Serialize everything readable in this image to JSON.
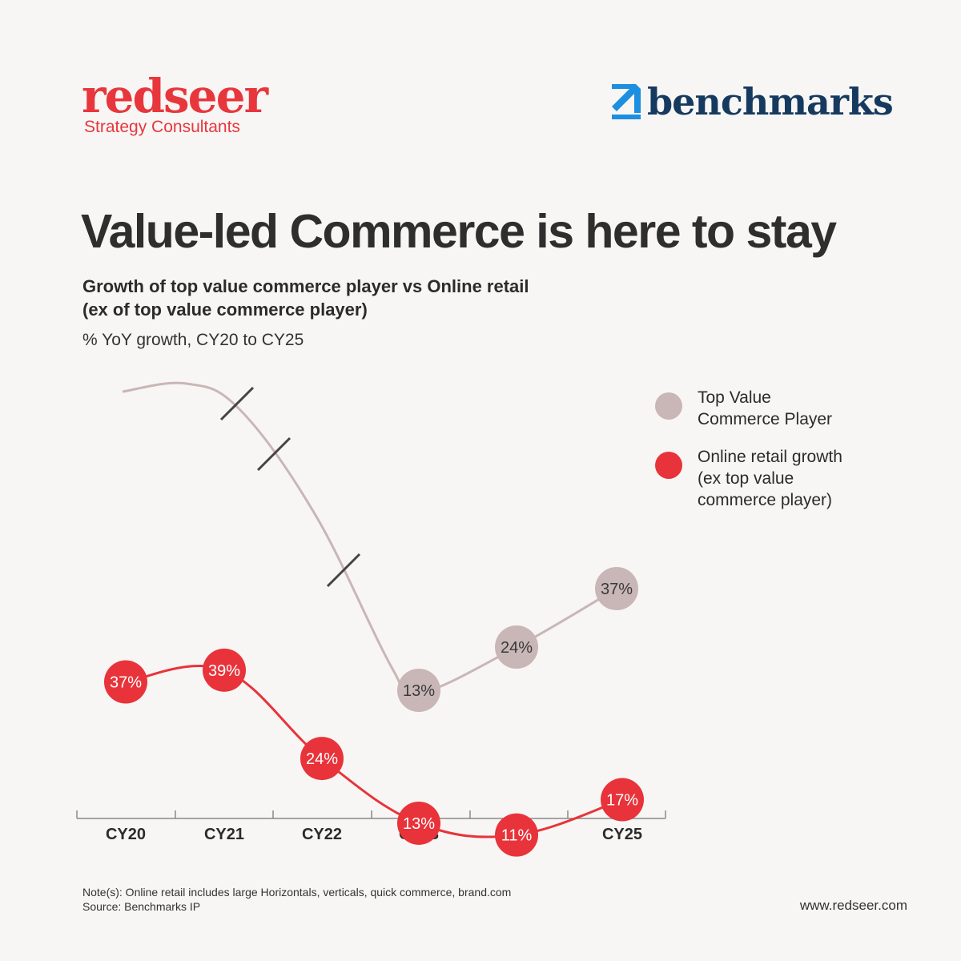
{
  "brand": {
    "redseer_name": "redseer",
    "redseer_tagline": "Strategy Consultants",
    "benchmarks_name": "benchmarks"
  },
  "title": "Value-led Commerce is here to stay",
  "subtitle_line1": "Growth of top value commerce player vs Online retail",
  "subtitle_line2": "(ex of top value commerce player)",
  "unit_label": "% YoY growth, CY20 to CY25",
  "colors": {
    "top_value": "#c9b6b6",
    "online_retail": "#e8333a",
    "background": "#f7f6f4"
  },
  "chart_data": {
    "type": "line",
    "categories": [
      "CY20",
      "CY21",
      "CY22",
      "CY23",
      "CY24",
      "CY25"
    ],
    "series": [
      {
        "name": "Top Value Commerce Player",
        "color": "#c9b6b6",
        "labels": [
          "",
          "",
          "",
          "13%",
          "24%",
          "37%"
        ],
        "broken_axis_marks": 3
      },
      {
        "name": "Online retail growth (ex top value commerce player)",
        "color": "#e8333a",
        "values": [
          37,
          39,
          24,
          13,
          11,
          17
        ],
        "labels": [
          "37%",
          "39%",
          "24%",
          "13%",
          "11%",
          "17%"
        ]
      }
    ],
    "legend_position": "right",
    "grid": false
  },
  "legend": [
    {
      "label_line1": "Top Value",
      "label_line2": "Commerce Player",
      "label_line3": "",
      "color": "#c9b6b6"
    },
    {
      "label_line1": "Online retail growth",
      "label_line2": "(ex top value",
      "label_line3": "commerce player)",
      "color": "#e8333a"
    }
  ],
  "footer": {
    "note": "Note(s): Online retail includes large Horizontals, verticals, quick commerce, brand.com",
    "source": "Source: Benchmarks IP",
    "url": "www.redseer.com"
  }
}
